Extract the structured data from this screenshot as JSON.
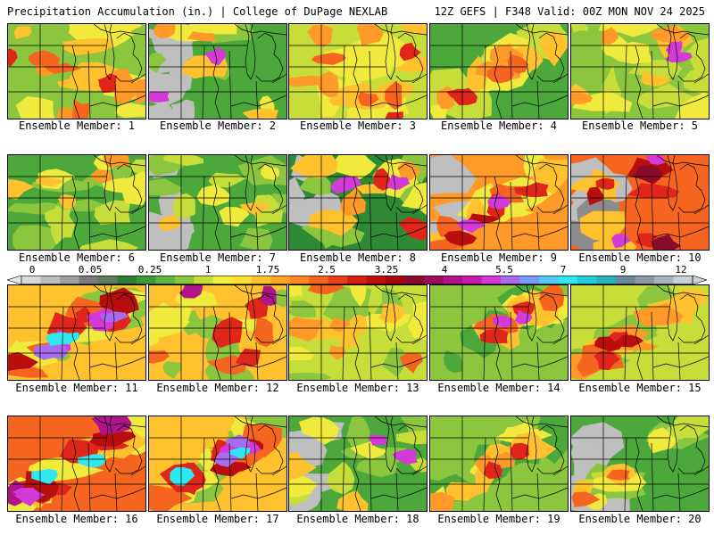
{
  "header": {
    "left_title": "Precipitation Accumulation (in.) | College of DuPage NEXLAB",
    "right_title": "12Z GEFS | F348 Valid: 00Z MON NOV 24 2025"
  },
  "colorbar": {
    "labels": [
      "0",
      "0.05",
      "0.25",
      "1",
      "1.75",
      "2.5",
      "3.25",
      "4",
      "5.5",
      "7",
      "9",
      "12"
    ],
    "colors": [
      "#d9d9d9",
      "#bdbdbd",
      "#a0a0a0",
      "#7a7a7a",
      "#5d7d5d",
      "#2e7d32",
      "#3c9a3a",
      "#5fb33f",
      "#8cc63e",
      "#c6dd3a",
      "#f0f03c",
      "#ffe033",
      "#ffc22e",
      "#ffa52b",
      "#ff8726",
      "#f5651f",
      "#ea4019",
      "#d81d13",
      "#c0100e",
      "#a5080c",
      "#8a0c2a",
      "#9a0e5a",
      "#b0148a",
      "#c81cb0",
      "#d43ad8",
      "#a86cf0",
      "#7a9af8",
      "#56c6f8",
      "#2ee8f0",
      "#22cbd8",
      "#2ab0b8",
      "#6a8a9a",
      "#8a9aa8",
      "#aab4be",
      "#c8d0d8"
    ]
  },
  "members": [
    {
      "label": "Ensemble Member: 1",
      "style": "moderate-west-maxima"
    },
    {
      "label": "Ensemble Member: 2",
      "style": "dry-west-southern-heavy"
    },
    {
      "label": "Ensemble Member: 3",
      "style": "moderate-widespread"
    },
    {
      "label": "Ensemble Member: 4",
      "style": "sw-ne-band"
    },
    {
      "label": "Ensemble Member: 5",
      "style": "light-central-south"
    },
    {
      "label": "Ensemble Member: 6",
      "style": "light"
    },
    {
      "label": "Ensemble Member: 7",
      "style": "light-east"
    },
    {
      "label": "Ensemble Member: 8",
      "style": "mixed-southeast"
    },
    {
      "label": "Ensemble Member: 9",
      "style": "heavy-michigan"
    },
    {
      "label": "Ensemble Member: 10",
      "style": "heavy-east"
    },
    {
      "label": "Ensemble Member: 11",
      "style": "intense-sw-band"
    },
    {
      "label": "Ensemble Member: 12",
      "style": "moderate-southwest"
    },
    {
      "label": "Ensemble Member: 13",
      "style": "light-moderate"
    },
    {
      "label": "Ensemble Member: 14",
      "style": "sw-ne-band-heavy"
    },
    {
      "label": "Ensemble Member: 15",
      "style": "moderate-south"
    },
    {
      "label": "Ensemble Member: 16",
      "style": "intense-widespread"
    },
    {
      "label": "Ensemble Member: 17",
      "style": "intense-sw-band"
    },
    {
      "label": "Ensemble Member: 18",
      "style": "light-dry-west"
    },
    {
      "label": "Ensemble Member: 19",
      "style": "moderate-southeast"
    },
    {
      "label": "Ensemble Member: 20",
      "style": "light-southeast-band"
    }
  ]
}
